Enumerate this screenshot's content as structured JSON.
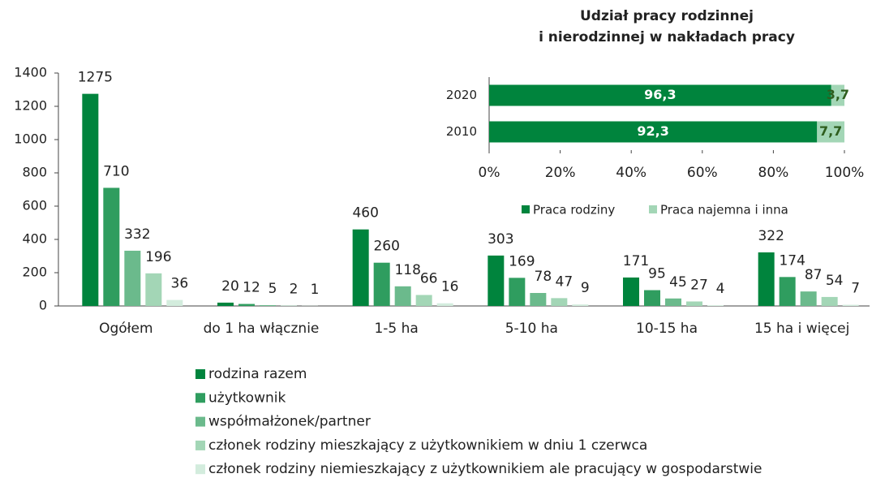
{
  "chart_data": [
    {
      "type": "bar",
      "categories": [
        "Ogółem",
        "do 1 ha włącznie",
        "1-5 ha",
        "5-10 ha",
        "10-15 ha",
        "15 ha i więcej"
      ],
      "series": [
        {
          "name": "rodzina razem",
          "color": "#00843d",
          "values": [
            1275,
            20,
            460,
            303,
            171,
            322
          ]
        },
        {
          "name": "użytkownik",
          "color": "#2f9d5f",
          "values": [
            710,
            12,
            260,
            169,
            95,
            174
          ]
        },
        {
          "name": "współmałżonek/partner",
          "color": "#6bba8c",
          "values": [
            332,
            5,
            118,
            78,
            45,
            87
          ]
        },
        {
          "name": "członek rodziny mieszkający z użytkownikiem w dniu 1 czerwca",
          "color": "#a3d6b6",
          "values": [
            196,
            2,
            66,
            47,
            27,
            54
          ]
        },
        {
          "name": "członek rodziny niemieszkający z użytkownikiem ale pracujący w gospodarstwie",
          "color": "#d3ecdd",
          "values": [
            36,
            1,
            16,
            9,
            4,
            7
          ]
        }
      ],
      "ylim": [
        0,
        1400
      ],
      "yticks": [
        0,
        200,
        400,
        600,
        800,
        1000,
        1200,
        1400
      ]
    },
    {
      "type": "barh",
      "stacked": true,
      "title": [
        "Udział pracy rodzinnej",
        "i nierodzinnej w nakładach pracy"
      ],
      "categories": [
        "2020",
        "2010"
      ],
      "series": [
        {
          "name": "Praca rodziny",
          "color": "#00843d",
          "values": [
            96.3,
            92.3
          ],
          "value_labels": [
            "96,3",
            "92,3"
          ]
        },
        {
          "name": "Praca najemna i inna",
          "color": "#a3d6b6",
          "values": [
            3.7,
            7.7
          ],
          "value_labels": [
            "3,7",
            "7,7"
          ]
        }
      ],
      "xlim": [
        0,
        100
      ],
      "xticks": [
        {
          "value": 0,
          "label": "0%"
        },
        {
          "value": 20,
          "label": "20%"
        },
        {
          "value": 40,
          "label": "40%"
        },
        {
          "value": 60,
          "label": "60%"
        },
        {
          "value": 80,
          "label": "80%"
        },
        {
          "value": 100,
          "label": "100%"
        }
      ]
    }
  ]
}
